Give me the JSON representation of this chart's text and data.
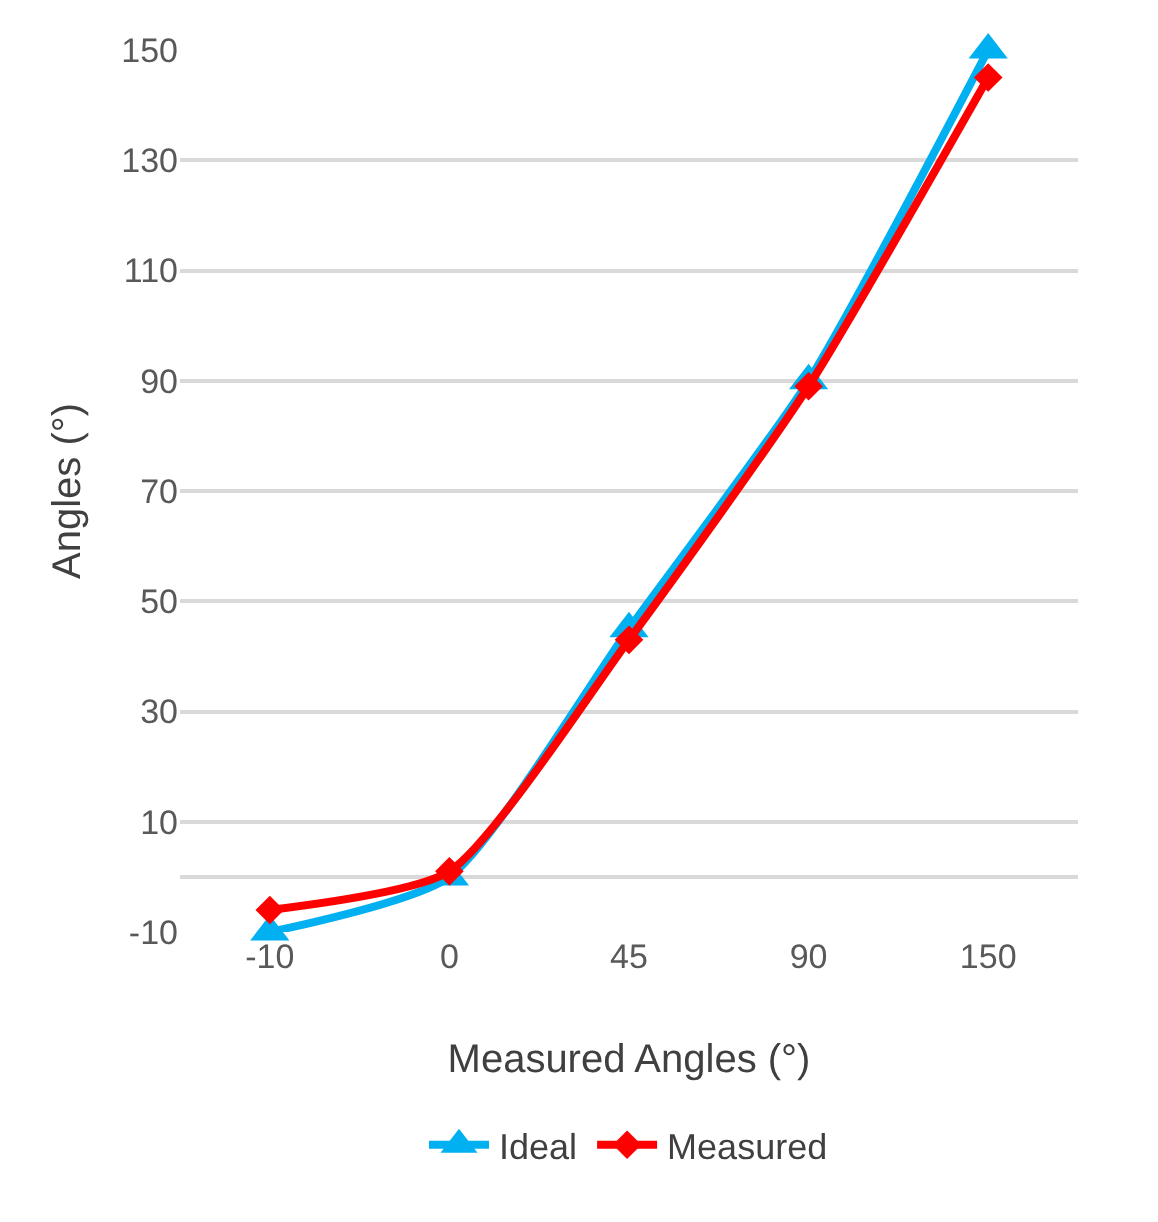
{
  "chart_data": {
    "type": "line",
    "xlabel": "Measured Angles (°)",
    "ylabel": "Angles (°)",
    "categories": [
      "-10",
      "0",
      "45",
      "90",
      "150"
    ],
    "series": [
      {
        "name": "Ideal",
        "color": "#00b0f0",
        "marker": "triangle",
        "values": [
          -10,
          0,
          45,
          90,
          150
        ]
      },
      {
        "name": "Measured",
        "color": "#ff0000",
        "marker": "diamond",
        "values": [
          -6,
          1,
          43,
          89,
          145
        ]
      }
    ],
    "ylim": [
      -10,
      150
    ],
    "yticks": [
      -10,
      10,
      30,
      50,
      70,
      90,
      110,
      130,
      150
    ],
    "grid": "y",
    "legend": "bottom"
  }
}
